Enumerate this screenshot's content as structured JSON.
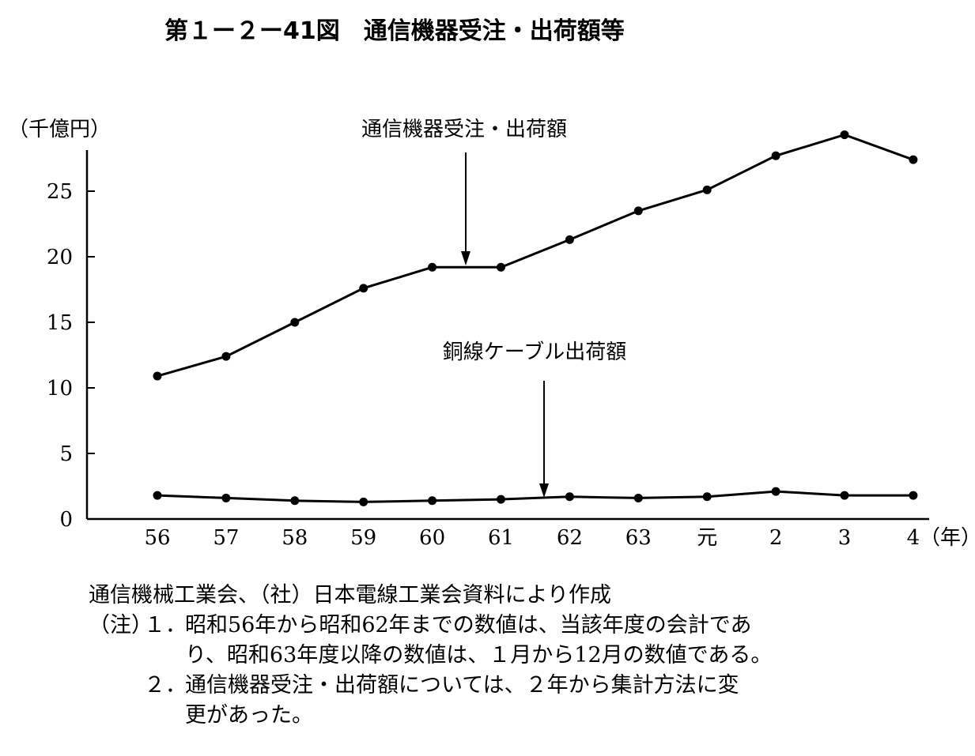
{
  "title": "第１ー２ー41図　通信機器受注・出荷額等",
  "chart_data": {
    "type": "line",
    "ylabel": "（千億円）",
    "xunit": "（年）",
    "categories": [
      "56",
      "57",
      "58",
      "59",
      "60",
      "61",
      "62",
      "63",
      "元",
      "2",
      "3",
      "4"
    ],
    "ylim": [
      0,
      30
    ],
    "yticks": [
      0,
      5,
      10,
      15,
      20,
      25
    ],
    "grid": false,
    "series": [
      {
        "name": "通信機器受注・出荷額",
        "values": [
          10.9,
          12.4,
          15.0,
          17.6,
          19.2,
          19.2,
          21.3,
          23.5,
          25.1,
          27.7,
          29.3,
          27.4
        ]
      },
      {
        "name": "銅線ケーブル出荷額",
        "values": [
          1.8,
          1.6,
          1.4,
          1.3,
          1.4,
          1.5,
          1.7,
          1.6,
          1.7,
          2.1,
          1.8,
          1.8
        ]
      }
    ],
    "annotations": [
      {
        "text": "通信機器受注・出荷額",
        "series": 0
      },
      {
        "text": "銅線ケーブル出荷額",
        "series": 1
      }
    ]
  },
  "notes": {
    "source": "通信機械工業会、（社）日本電線工業会資料により作成",
    "note_label": "（注）",
    "note1_num": "１．",
    "note1_line1": "昭和56年から昭和62年までの数値は、当該年度の会計であ",
    "note1_line2": "り、昭和63年度以降の数値は、１月から12月の数値である。",
    "note2_num": "２．",
    "note2_line1": "通信機器受注・出荷額については、２年から集計方法に変",
    "note2_line2": "更があった。"
  }
}
